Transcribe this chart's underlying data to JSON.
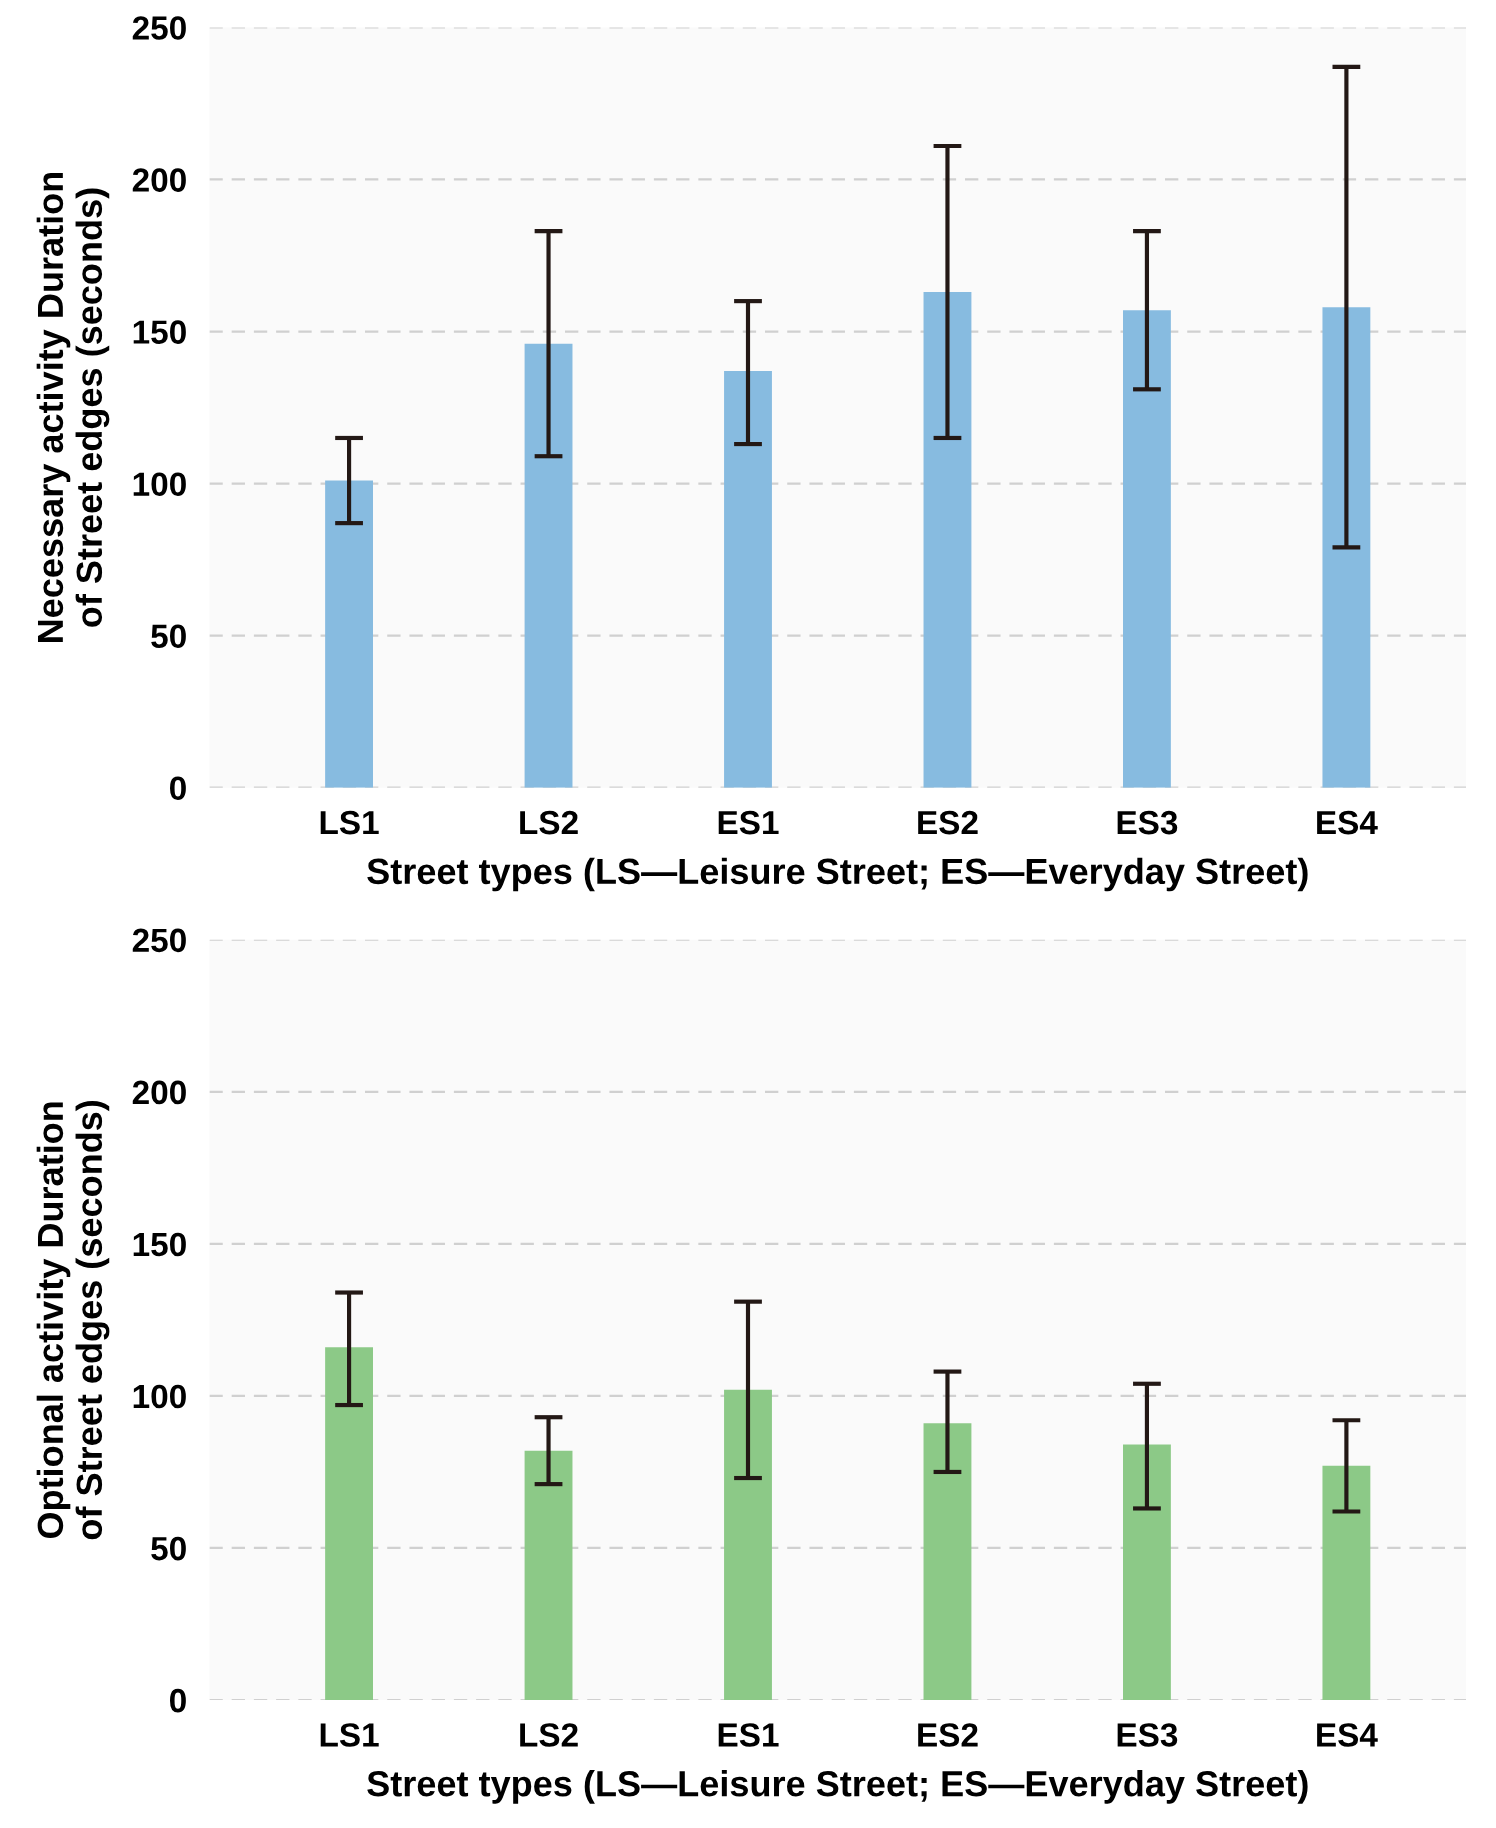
{
  "chart_data": [
    {
      "type": "bar",
      "xlabel": "Street types (LS—Leisure Street; ES—Everyday Street)",
      "ylabel": "Necessary activity Duration\nof Street edges (seconds)",
      "categories": [
        "LS1",
        "LS2",
        "ES1",
        "ES2",
        "ES3",
        "ES4"
      ],
      "color": "#87bbe0",
      "values": [
        101,
        146,
        137,
        163,
        157,
        158
      ],
      "errors": [
        [
          87,
          115
        ],
        [
          109,
          183
        ],
        [
          113,
          160
        ],
        [
          115,
          211
        ],
        [
          131,
          183
        ],
        [
          79,
          237
        ]
      ],
      "ylim": [
        0,
        250
      ],
      "yticks": [
        0,
        50,
        100,
        150,
        200,
        250
      ],
      "grid": "y"
    },
    {
      "type": "bar",
      "xlabel": "Street types (LS—Leisure Street; ES—Everyday Street)",
      "ylabel": "Optional activity Duration\nof Street edges (seconds)",
      "categories": [
        "LS1",
        "LS2",
        "ES1",
        "ES2",
        "ES3",
        "ES4"
      ],
      "color": "#8cc987",
      "values": [
        116,
        82,
        102,
        91,
        84,
        77
      ],
      "errors": [
        [
          97,
          134
        ],
        [
          71,
          93
        ],
        [
          73,
          131
        ],
        [
          75,
          108
        ],
        [
          63,
          104
        ],
        [
          62,
          92
        ]
      ],
      "ylim": [
        0,
        250
      ],
      "yticks": [
        0,
        50,
        100,
        150,
        200,
        250
      ],
      "grid": "y"
    }
  ]
}
